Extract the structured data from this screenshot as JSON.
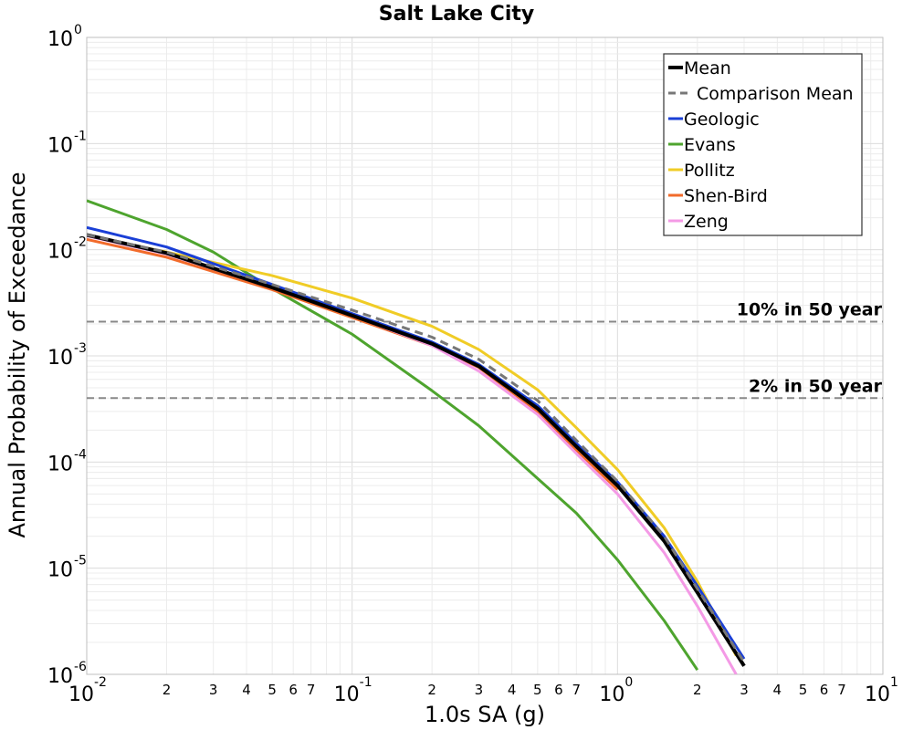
{
  "chart_data": {
    "type": "line",
    "title": "Salt Lake City",
    "xlabel": "1.0s SA (g)",
    "ylabel": "Annual Probability of Exceedance",
    "xscale": "log",
    "yscale": "log",
    "xlim": [
      0.01,
      10
    ],
    "ylim": [
      1e-06,
      1
    ],
    "grid": true,
    "legend_position": "top-right",
    "x_tick_major": [
      {
        "value": 0.01,
        "base": "10",
        "exp": "-2"
      },
      {
        "value": 0.1,
        "base": "10",
        "exp": "-1"
      },
      {
        "value": 1,
        "base": "10",
        "exp": "0"
      },
      {
        "value": 10,
        "base": "10",
        "exp": "1"
      }
    ],
    "x_tick_minor": [
      "2",
      "3",
      "4",
      "5",
      "6",
      "7"
    ],
    "y_tick_major": [
      {
        "value": 1,
        "base": "10",
        "exp": "0"
      },
      {
        "value": 0.1,
        "base": "10",
        "exp": "-1"
      },
      {
        "value": 0.01,
        "base": "10",
        "exp": "-2"
      },
      {
        "value": 0.001,
        "base": "10",
        "exp": "-3"
      },
      {
        "value": 0.0001,
        "base": "10",
        "exp": "-4"
      },
      {
        "value": 1e-05,
        "base": "10",
        "exp": "-5"
      },
      {
        "value": 1e-06,
        "base": "10",
        "exp": "-6"
      }
    ],
    "reference_lines": [
      {
        "label": "10% in 50 year",
        "y": 0.0021,
        "color": "#888888"
      },
      {
        "label": "2% in 50 year",
        "y": 0.0004,
        "color": "#888888"
      }
    ],
    "series": [
      {
        "name": "Mean",
        "color": "#000000",
        "width": 4,
        "dash": "",
        "x": [
          0.01,
          0.02,
          0.05,
          0.1,
          0.2,
          0.3,
          0.5,
          0.7,
          1.0,
          1.5,
          2.0,
          3.0
        ],
        "y": [
          0.0138,
          0.0093,
          0.0044,
          0.0024,
          0.0013,
          0.0008,
          0.00032,
          0.00014,
          6e-05,
          1.8e-05,
          5.9e-06,
          1.2e-06
        ]
      },
      {
        "name": "Comparison Mean",
        "color": "#777777",
        "width": 3,
        "dash": "9,6",
        "x": [
          0.01,
          0.02,
          0.05,
          0.1,
          0.2,
          0.3,
          0.5,
          0.7,
          1.0,
          1.5,
          2.0,
          3.0
        ],
        "y": [
          0.0138,
          0.0095,
          0.0047,
          0.0027,
          0.0015,
          0.00093,
          0.00038,
          0.00016,
          6.6e-05,
          2e-05,
          6.4e-06,
          1.3e-06
        ]
      },
      {
        "name": "Geologic",
        "color": "#1a3fd6",
        "width": 3,
        "dash": "",
        "x": [
          0.01,
          0.02,
          0.05,
          0.1,
          0.2,
          0.3,
          0.5,
          0.7,
          1.0,
          1.5,
          2.0,
          3.0
        ],
        "y": [
          0.0162,
          0.0106,
          0.0047,
          0.0025,
          0.00135,
          0.00083,
          0.00034,
          0.00015,
          6.5e-05,
          2e-05,
          6.8e-06,
          1.4e-06
        ]
      },
      {
        "name": "Evans",
        "color": "#4ea42e",
        "width": 3,
        "dash": "",
        "x": [
          0.01,
          0.02,
          0.03,
          0.05,
          0.1,
          0.2,
          0.3,
          0.5,
          0.7,
          1.0,
          1.5,
          2.0
        ],
        "y": [
          0.029,
          0.0155,
          0.0095,
          0.0043,
          0.0016,
          0.00047,
          0.00022,
          7e-05,
          3.3e-05,
          1.2e-05,
          3.2e-06,
          1.1e-06
        ]
      },
      {
        "name": "Pollitz",
        "color": "#f0cc26",
        "width": 3,
        "dash": "",
        "x": [
          0.01,
          0.02,
          0.03,
          0.05,
          0.1,
          0.2,
          0.3,
          0.5,
          0.7,
          1.0,
          1.5,
          2.0,
          2.8
        ],
        "y": [
          0.0135,
          0.0095,
          0.0076,
          0.0057,
          0.0035,
          0.0019,
          0.00115,
          0.00048,
          0.00021,
          8.5e-05,
          2.4e-05,
          7.5e-06,
          1.5e-06
        ]
      },
      {
        "name": "Shen-Bird",
        "color": "#f26b2b",
        "width": 3,
        "dash": "",
        "x": [
          0.01,
          0.02,
          0.05,
          0.1,
          0.2,
          0.3,
          0.5,
          0.7,
          1.0
        ],
        "y": [
          0.0125,
          0.0085,
          0.0042,
          0.0023,
          0.00125,
          0.00078,
          0.0003,
          0.00013,
          5.5e-05
        ]
      },
      {
        "name": "Zeng",
        "color": "#f49ae6",
        "width": 3,
        "dash": "",
        "x": [
          0.01,
          0.02,
          0.05,
          0.1,
          0.2,
          0.3,
          0.5,
          0.7,
          1.0,
          1.5,
          2.0,
          2.8
        ],
        "y": [
          0.0135,
          0.0091,
          0.0044,
          0.0024,
          0.00125,
          0.00072,
          0.00028,
          0.00012,
          5e-05,
          1.4e-05,
          4.4e-06,
          1e-06
        ]
      }
    ]
  }
}
